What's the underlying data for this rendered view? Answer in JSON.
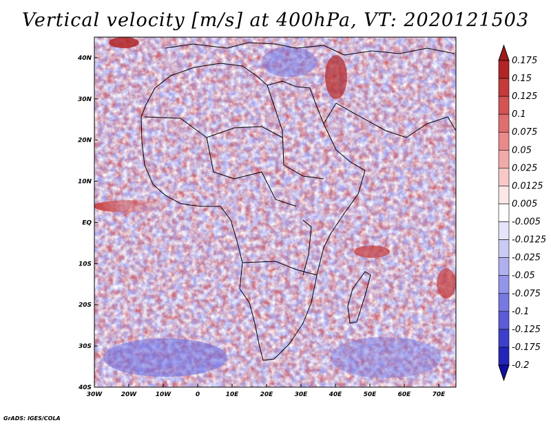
{
  "title": "Vertical velocity [m/s] at 400hPa, VT: 2020121503",
  "credit": "GrADS: IGES/COLA",
  "map": {
    "variable": "Vertical velocity",
    "units": "m/s",
    "level": "400hPa",
    "valid_time": "2020121503",
    "lon_range": [
      -30,
      75
    ],
    "lat_range": [
      -40,
      45
    ],
    "lon_ticks": [
      {
        "value": -30,
        "label": "30W"
      },
      {
        "value": -20,
        "label": "20W"
      },
      {
        "value": -10,
        "label": "10W"
      },
      {
        "value": 0,
        "label": "0"
      },
      {
        "value": 10,
        "label": "10E"
      },
      {
        "value": 20,
        "label": "20E"
      },
      {
        "value": 30,
        "label": "30E"
      },
      {
        "value": 40,
        "label": "40E"
      },
      {
        "value": 50,
        "label": "50E"
      },
      {
        "value": 60,
        "label": "60E"
      },
      {
        "value": 70,
        "label": "70E"
      }
    ],
    "lat_ticks": [
      {
        "value": 40,
        "label": "40N"
      },
      {
        "value": 30,
        "label": "30N"
      },
      {
        "value": 20,
        "label": "20N"
      },
      {
        "value": 10,
        "label": "10N"
      },
      {
        "value": 0,
        "label": "EQ"
      },
      {
        "value": -10,
        "label": "10S"
      },
      {
        "value": -20,
        "label": "20S"
      },
      {
        "value": -30,
        "label": "30S"
      },
      {
        "value": -40,
        "label": "40S"
      }
    ]
  },
  "colorbar": {
    "labels": [
      "0.175",
      "0.15",
      "0.125",
      "0.1",
      "0.075",
      "0.05",
      "0.025",
      "0.0125",
      "0.005",
      "-0.005",
      "-0.0125",
      "-0.025",
      "-0.05",
      "-0.075",
      "-0.1",
      "-0.125",
      "-0.175",
      "-0.2"
    ],
    "colors": [
      "#9e1a1a",
      "#b22525",
      "#c53a3a",
      "#d45353",
      "#e06e6e",
      "#ea8a8a",
      "#f2a9a9",
      "#f8c8c8",
      "#fde6e6",
      "#ffffff",
      "#e4e4fa",
      "#cacaf5",
      "#b0b0f0",
      "#9494ea",
      "#7878e2",
      "#5c5cd8",
      "#3e3ecc",
      "#2424b8",
      "#1010a0"
    ]
  }
}
